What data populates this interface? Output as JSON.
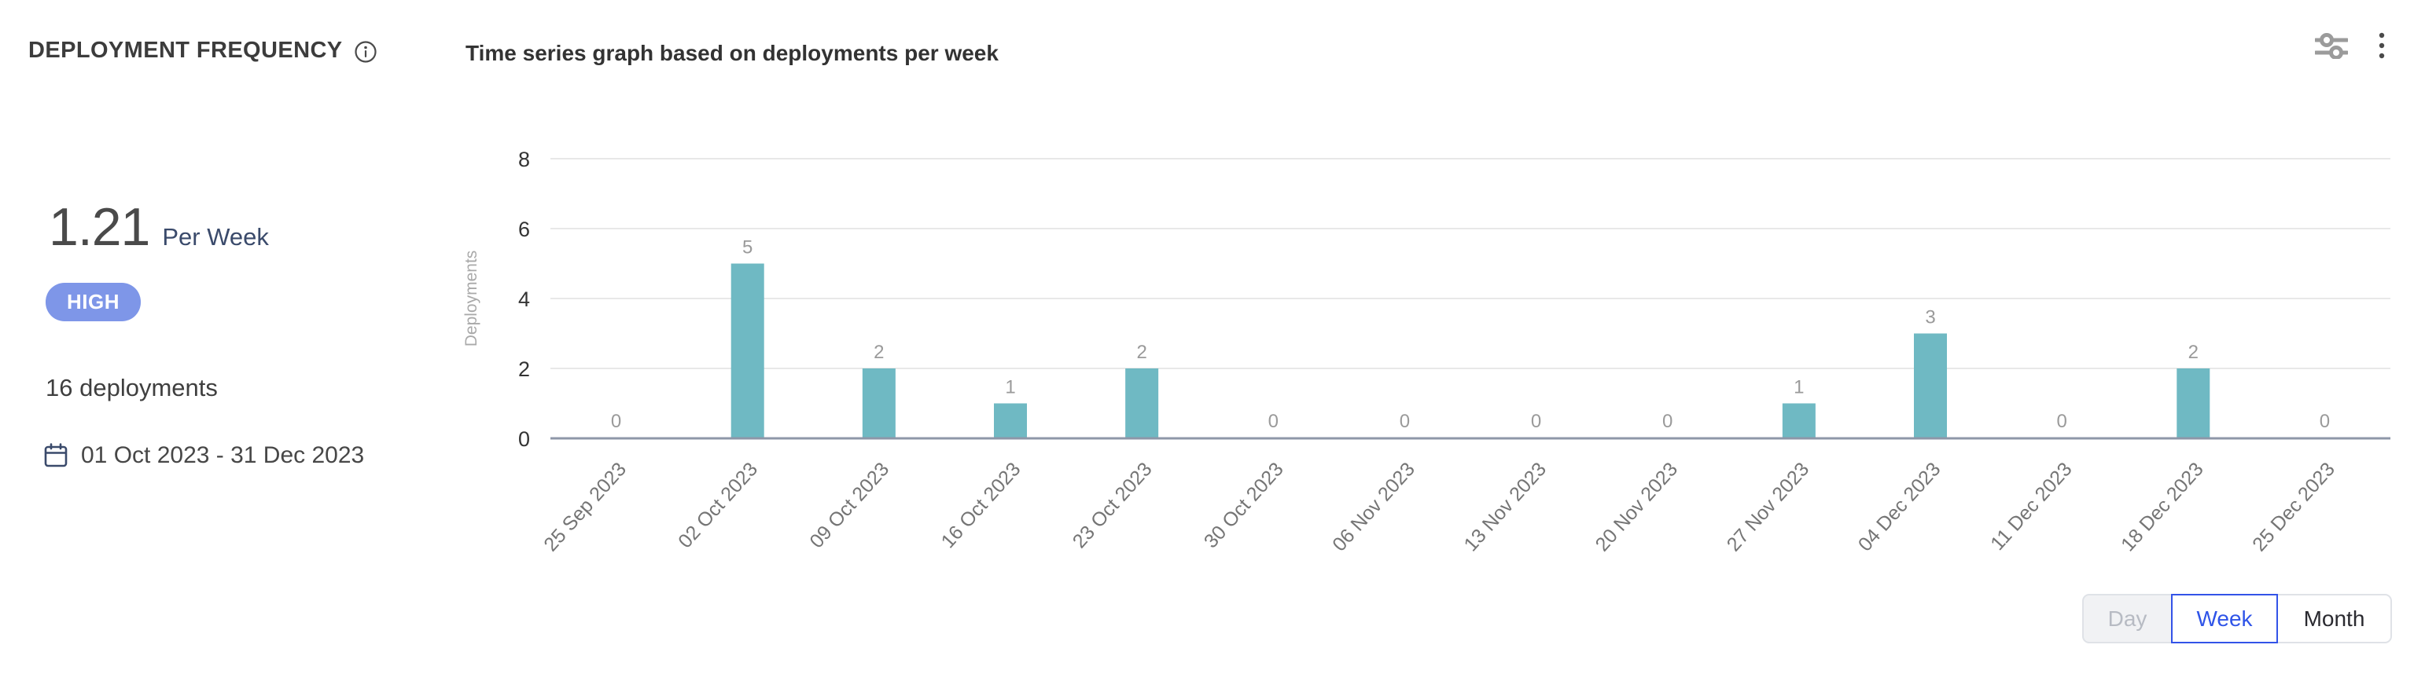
{
  "header": {
    "title": "DEPLOYMENT FREQUENCY",
    "subtitle": "Time series graph based on deployments per week"
  },
  "stats": {
    "value": "1.21",
    "unit": "Per Week",
    "rating": "HIGH",
    "total": "16 deployments",
    "date_range": "01 Oct 2023 - 31 Dec 2023"
  },
  "granularity": {
    "options": [
      {
        "label": "Day",
        "state": "disabled"
      },
      {
        "label": "Week",
        "state": "selected"
      },
      {
        "label": "Month",
        "state": "default"
      }
    ]
  },
  "icons": {
    "info": "info-icon",
    "filter": "filter-sliders-icon",
    "menu": "kebab-menu-icon",
    "calendar": "calendar-icon"
  },
  "colors": {
    "bar": "#6FB9C3",
    "badge_bg": "#7E96E8",
    "unit_navy": "#3A4A6B",
    "selected_blue": "#2F54E8",
    "gridline": "#E8E8E8",
    "baseline": "#8E97A8",
    "data_label": "#9A9A9A",
    "x_label": "#757575",
    "y_tick": "#333333",
    "axis_title": "#A9A9A9"
  },
  "chart_data": {
    "type": "bar",
    "title": "Time series graph based on deployments per week",
    "categories": [
      "25 Sep 2023",
      "02 Oct 2023",
      "09 Oct 2023",
      "16 Oct 2023",
      "23 Oct 2023",
      "30 Oct 2023",
      "06 Nov 2023",
      "13 Nov 2023",
      "20 Nov 2023",
      "27 Nov 2023",
      "04 Dec 2023",
      "11 Dec 2023",
      "18 Dec 2023",
      "25 Dec 2023"
    ],
    "values": [
      0,
      5,
      2,
      1,
      2,
      0,
      0,
      0,
      0,
      1,
      3,
      0,
      2,
      0
    ],
    "xlabel": "",
    "ylabel": "Deployments",
    "ylim": [
      0,
      8
    ],
    "yticks": [
      0,
      2,
      4,
      6,
      8
    ],
    "grid": true,
    "legend": false,
    "data_labels": true,
    "bar_color": "#6FB9C3",
    "x_label_rotation": -48
  }
}
